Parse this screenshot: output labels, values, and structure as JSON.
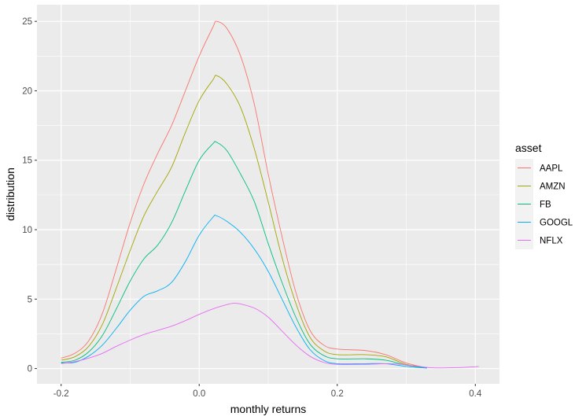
{
  "chart_data": {
    "type": "line",
    "title": "",
    "xlabel": "monthly returns",
    "ylabel": "distribution",
    "xlim": [
      -0.235,
      0.435
    ],
    "ylim": [
      -1.1,
      26.2
    ],
    "x_ticks": [
      -0.2,
      0.0,
      0.2,
      0.4
    ],
    "x_tick_labels": [
      "-0.2",
      "0.0",
      "0.2",
      "0.4"
    ],
    "y_ticks": [
      0,
      5,
      10,
      15,
      20,
      25
    ],
    "y_tick_labels": [
      "0",
      "5",
      "10",
      "15",
      "20",
      "25"
    ],
    "grid": true,
    "legend": {
      "title": "asset",
      "placement": "right"
    },
    "background": "#ebebeb",
    "grid_color": "#ffffff",
    "series": [
      {
        "name": "AAPL",
        "color": "#F8766D",
        "points": [
          [
            -0.2,
            0.75
          ],
          [
            -0.18,
            1.1
          ],
          [
            -0.16,
            2.0
          ],
          [
            -0.14,
            4.0
          ],
          [
            -0.12,
            7.2
          ],
          [
            -0.1,
            10.5
          ],
          [
            -0.08,
            13.3
          ],
          [
            -0.06,
            15.5
          ],
          [
            -0.04,
            17.5
          ],
          [
            -0.02,
            20.0
          ],
          [
            0.0,
            22.5
          ],
          [
            0.02,
            24.6
          ],
          [
            0.025,
            25.0
          ],
          [
            0.04,
            24.5
          ],
          [
            0.06,
            22.5
          ],
          [
            0.08,
            19.0
          ],
          [
            0.1,
            14.0
          ],
          [
            0.12,
            9.5
          ],
          [
            0.14,
            5.5
          ],
          [
            0.16,
            2.8
          ],
          [
            0.18,
            1.7
          ],
          [
            0.2,
            1.4
          ],
          [
            0.24,
            1.3
          ],
          [
            0.27,
            1.0
          ],
          [
            0.3,
            0.4
          ],
          [
            0.33,
            0.05
          ]
        ]
      },
      {
        "name": "AMZN",
        "color": "#A3A500",
        "points": [
          [
            -0.2,
            0.6
          ],
          [
            -0.18,
            0.85
          ],
          [
            -0.16,
            1.6
          ],
          [
            -0.14,
            3.2
          ],
          [
            -0.12,
            5.8
          ],
          [
            -0.1,
            8.5
          ],
          [
            -0.08,
            11.0
          ],
          [
            -0.06,
            12.8
          ],
          [
            -0.04,
            14.5
          ],
          [
            -0.02,
            17.0
          ],
          [
            0.0,
            19.3
          ],
          [
            0.02,
            20.8
          ],
          [
            0.025,
            21.1
          ],
          [
            0.04,
            20.5
          ],
          [
            0.06,
            18.8
          ],
          [
            0.08,
            15.8
          ],
          [
            0.1,
            12.0
          ],
          [
            0.12,
            8.0
          ],
          [
            0.14,
            4.7
          ],
          [
            0.16,
            2.3
          ],
          [
            0.18,
            1.3
          ],
          [
            0.2,
            1.0
          ],
          [
            0.24,
            1.0
          ],
          [
            0.27,
            0.85
          ],
          [
            0.3,
            0.3
          ],
          [
            0.33,
            0.05
          ]
        ]
      },
      {
        "name": "FB",
        "color": "#00BF7D",
        "points": [
          [
            -0.2,
            0.45
          ],
          [
            -0.18,
            0.6
          ],
          [
            -0.16,
            1.2
          ],
          [
            -0.14,
            2.4
          ],
          [
            -0.12,
            4.3
          ],
          [
            -0.1,
            6.3
          ],
          [
            -0.08,
            7.9
          ],
          [
            -0.06,
            8.9
          ],
          [
            -0.04,
            10.5
          ],
          [
            -0.02,
            12.8
          ],
          [
            0.0,
            15.0
          ],
          [
            0.02,
            16.2
          ],
          [
            0.025,
            16.3
          ],
          [
            0.04,
            15.7
          ],
          [
            0.06,
            14.0
          ],
          [
            0.08,
            12.0
          ],
          [
            0.1,
            9.0
          ],
          [
            0.12,
            6.2
          ],
          [
            0.14,
            3.7
          ],
          [
            0.16,
            1.8
          ],
          [
            0.18,
            0.95
          ],
          [
            0.2,
            0.7
          ],
          [
            0.24,
            0.7
          ],
          [
            0.27,
            0.6
          ],
          [
            0.3,
            0.25
          ],
          [
            0.33,
            0.05
          ]
        ]
      },
      {
        "name": "GOOGL",
        "color": "#00B0F6",
        "points": [
          [
            -0.2,
            0.4
          ],
          [
            -0.18,
            0.45
          ],
          [
            -0.16,
            0.9
          ],
          [
            -0.14,
            1.7
          ],
          [
            -0.12,
            2.9
          ],
          [
            -0.1,
            4.2
          ],
          [
            -0.08,
            5.2
          ],
          [
            -0.06,
            5.6
          ],
          [
            -0.04,
            6.2
          ],
          [
            -0.02,
            7.7
          ],
          [
            0.0,
            9.6
          ],
          [
            0.02,
            10.9
          ],
          [
            0.025,
            11.0
          ],
          [
            0.04,
            10.6
          ],
          [
            0.06,
            9.8
          ],
          [
            0.08,
            8.6
          ],
          [
            0.1,
            7.0
          ],
          [
            0.12,
            5.0
          ],
          [
            0.14,
            3.0
          ],
          [
            0.16,
            1.4
          ],
          [
            0.18,
            0.6
          ],
          [
            0.2,
            0.35
          ],
          [
            0.24,
            0.35
          ],
          [
            0.27,
            0.35
          ],
          [
            0.3,
            0.15
          ],
          [
            0.33,
            0.03
          ]
        ]
      },
      {
        "name": "NFLX",
        "color": "#E76BF3",
        "points": [
          [
            -0.2,
            0.35
          ],
          [
            -0.18,
            0.5
          ],
          [
            -0.16,
            0.75
          ],
          [
            -0.14,
            1.1
          ],
          [
            -0.12,
            1.6
          ],
          [
            -0.1,
            2.05
          ],
          [
            -0.08,
            2.45
          ],
          [
            -0.06,
            2.75
          ],
          [
            -0.04,
            3.05
          ],
          [
            -0.02,
            3.45
          ],
          [
            0.0,
            3.9
          ],
          [
            0.02,
            4.3
          ],
          [
            0.04,
            4.6
          ],
          [
            0.05,
            4.7
          ],
          [
            0.06,
            4.65
          ],
          [
            0.08,
            4.35
          ],
          [
            0.1,
            3.7
          ],
          [
            0.12,
            2.7
          ],
          [
            0.14,
            1.7
          ],
          [
            0.16,
            0.9
          ],
          [
            0.18,
            0.45
          ],
          [
            0.2,
            0.3
          ],
          [
            0.24,
            0.3
          ],
          [
            0.28,
            0.35
          ],
          [
            0.31,
            0.2
          ],
          [
            0.34,
            0.05
          ],
          [
            0.38,
            0.08
          ],
          [
            0.405,
            0.15
          ]
        ]
      }
    ]
  }
}
